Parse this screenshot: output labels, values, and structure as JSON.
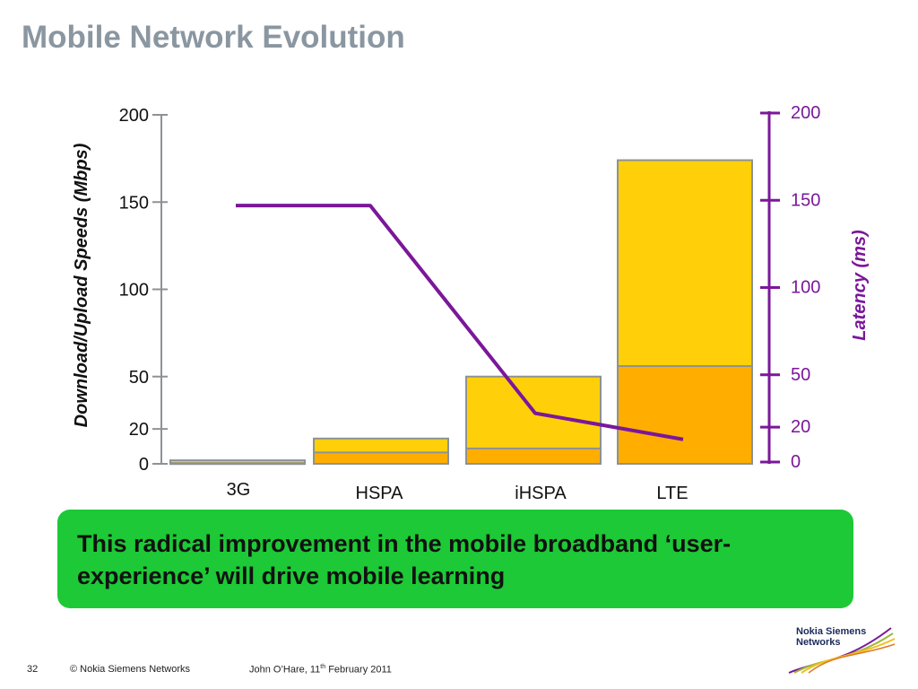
{
  "slide": {
    "title": "Mobile Network Evolution",
    "callout": "This radical improvement in the mobile broadband ‘user-experience’ will drive mobile learning"
  },
  "chart_data": {
    "type": "bar",
    "title": "",
    "categories": [
      "3G",
      "HSPA",
      "iHSPA",
      "LTE"
    ],
    "series": [
      {
        "name": "",
        "values": [
          0.4,
          6.5,
          8.8,
          56
        ],
        "color": "#ffae00"
      },
      {
        "name": "",
        "values": [
          2,
          14.5,
          50,
          174
        ],
        "color": "#ffd00a"
      }
    ],
    "bar_stroke": "#8c9296",
    "line": {
      "values": [
        148,
        148,
        29,
        14
      ],
      "color": "#7b179a"
    },
    "y_left": {
      "label": "Download/Upload Speeds (Mbps)",
      "range": [
        0,
        200
      ],
      "ticks": [
        0,
        20,
        50,
        100,
        150,
        200
      ]
    },
    "y_right": {
      "label": "Latency (ms)",
      "range": [
        0,
        200
      ],
      "ticks": [
        0,
        20,
        50,
        100,
        150,
        200
      ],
      "color": "#7b179a"
    }
  },
  "footer": {
    "page_number": "32",
    "copyright": "© Nokia Siemens Networks",
    "author": "John O’Hare, 11",
    "date_suffix": "th",
    "date_rest": " February 2011"
  },
  "logo": {
    "text": "Nokia Siemens\nNetworks"
  }
}
